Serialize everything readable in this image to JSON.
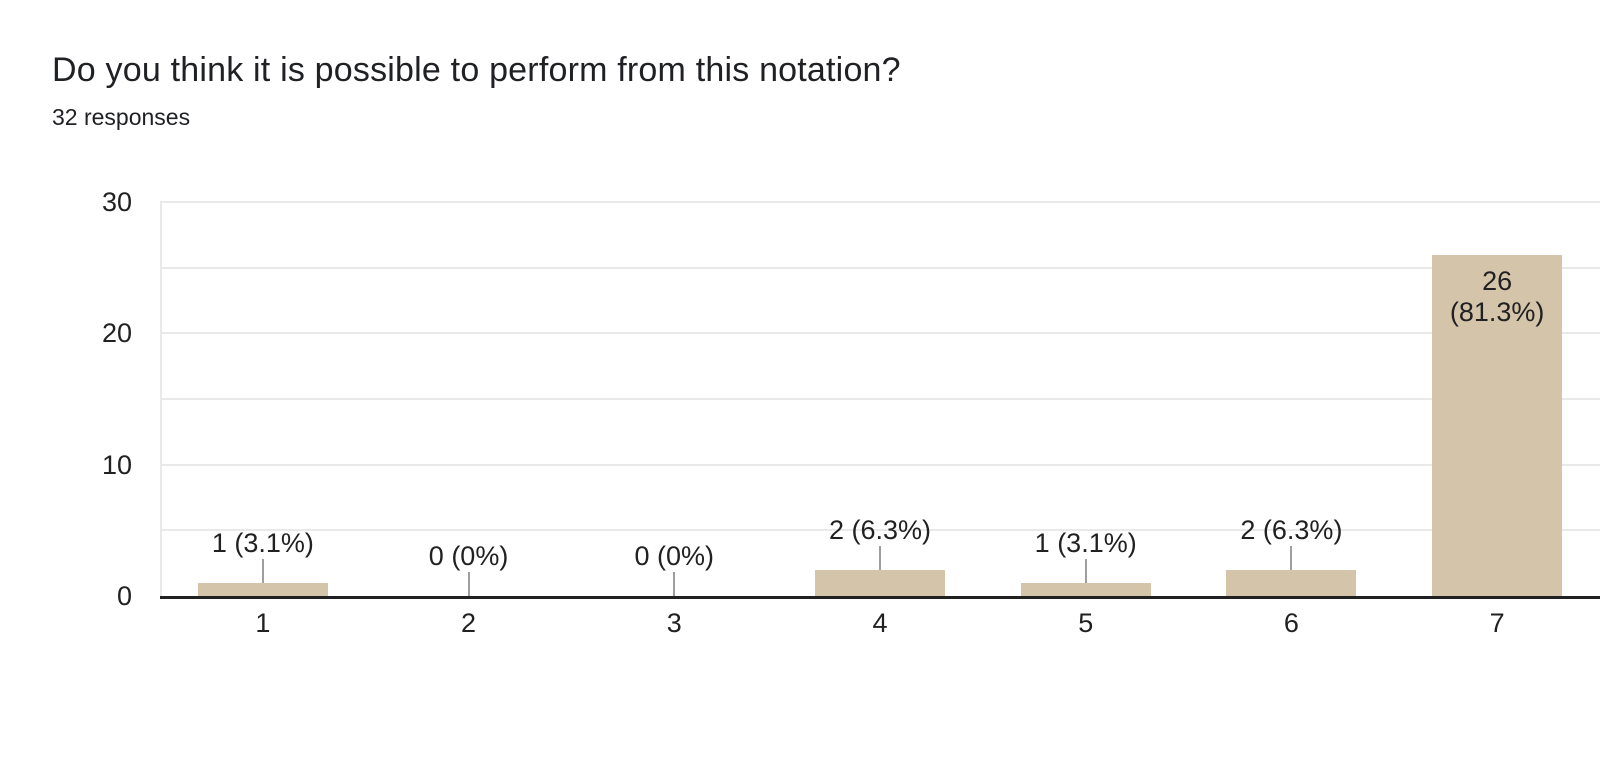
{
  "header": {
    "title": "Do you think it is possible to perform from this notation?",
    "subtitle": "32 responses"
  },
  "chart_data": {
    "type": "bar",
    "title": "Do you think it is possible to perform from this notation?",
    "subtitle": "32 responses",
    "categories": [
      "1",
      "2",
      "3",
      "4",
      "5",
      "6",
      "7"
    ],
    "values": [
      1,
      0,
      0,
      2,
      1,
      2,
      26
    ],
    "bar_labels": [
      "1 (3.1%)",
      "0 (0%)",
      "0 (0%)",
      "2 (6.3%)",
      "1 (3.1%)",
      "2 (6.3%)",
      "26 (81.3%)"
    ],
    "inside_label_index": 6,
    "inside_label_lines": [
      "26",
      "(81.3%)"
    ],
    "xlabel": "",
    "ylabel": "",
    "ylim": [
      0,
      30
    ],
    "yticks": [
      30,
      20,
      10,
      0
    ],
    "grid_step": 5,
    "grid": true,
    "legend": "none",
    "colors": {
      "bar": "#d4c4aa",
      "grid": "#e9e9e9",
      "axis_line": "#212121",
      "stem": "#9e9e9e",
      "text": "#212121",
      "title": "#202124"
    }
  }
}
